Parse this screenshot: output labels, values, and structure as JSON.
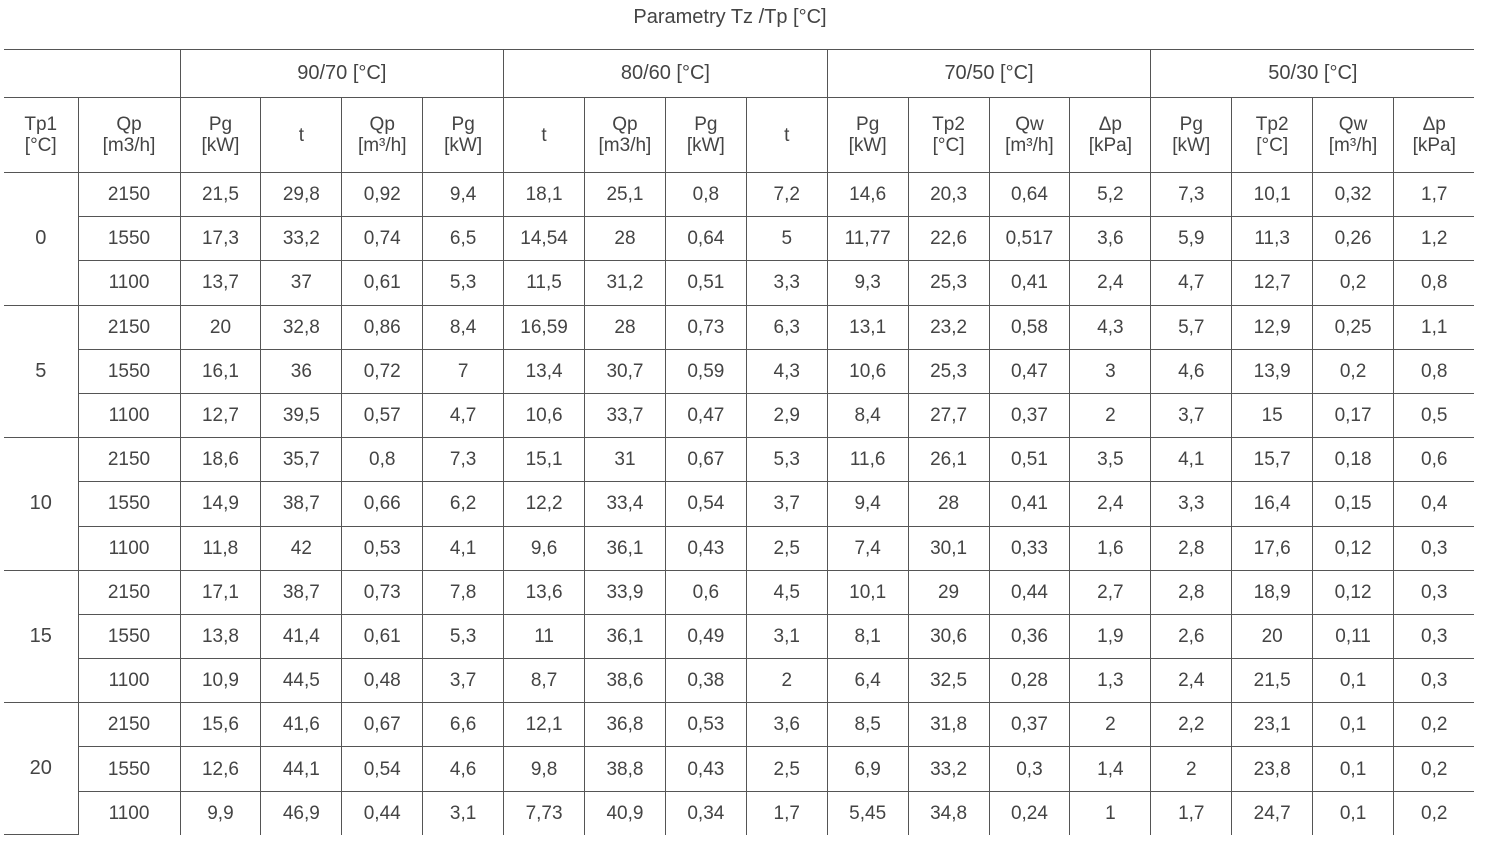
{
  "title": "Parametry Tz /Tp [°C]",
  "table": {
    "groups": [
      "90/70 [°C]",
      "80/60 [°C]",
      "70/50 [°C]",
      "50/30 [°C]"
    ],
    "columns": [
      [
        "Tp1",
        "[°C]"
      ],
      [
        "Qp",
        "[m3/h]"
      ],
      [
        "Pg",
        "[kW]"
      ],
      [
        "t"
      ],
      [
        "Qp",
        "[m³/h]"
      ],
      [
        "Pg",
        "[kW]"
      ],
      [
        "t"
      ],
      [
        "Qp",
        "[m3/h]"
      ],
      [
        "Pg",
        "[kW]"
      ],
      [
        "t"
      ],
      [
        "Pg",
        "[kW]"
      ],
      [
        "Tp2",
        "[°C]"
      ],
      [
        "Qw",
        "[m³/h]"
      ],
      [
        "Δp",
        "[kPa]"
      ],
      [
        "Pg",
        "[kW]"
      ],
      [
        "Tp2",
        "[°C]"
      ],
      [
        "Qw",
        "[m³/h]"
      ],
      [
        "Δp",
        "[kPa]"
      ]
    ],
    "blocks": [
      {
        "tp1": "0",
        "rows": [
          [
            "2150",
            "21,5",
            "29,8",
            "0,92",
            "9,4",
            "18,1",
            "25,1",
            "0,8",
            "7,2",
            "14,6",
            "20,3",
            "0,64",
            "5,2",
            "7,3",
            "10,1",
            "0,32",
            "1,7"
          ],
          [
            "1550",
            "17,3",
            "33,2",
            "0,74",
            "6,5",
            "14,54",
            "28",
            "0,64",
            "5",
            "11,77",
            "22,6",
            "0,517",
            "3,6",
            "5,9",
            "11,3",
            "0,26",
            "1,2"
          ],
          [
            "1100",
            "13,7",
            "37",
            "0,61",
            "5,3",
            "11,5",
            "31,2",
            "0,51",
            "3,3",
            "9,3",
            "25,3",
            "0,41",
            "2,4",
            "4,7",
            "12,7",
            "0,2",
            "0,8"
          ]
        ]
      },
      {
        "tp1": "5",
        "rows": [
          [
            "2150",
            "20",
            "32,8",
            "0,86",
            "8,4",
            "16,59",
            "28",
            "0,73",
            "6,3",
            "13,1",
            "23,2",
            "0,58",
            "4,3",
            "5,7",
            "12,9",
            "0,25",
            "1,1"
          ],
          [
            "1550",
            "16,1",
            "36",
            "0,72",
            "7",
            "13,4",
            "30,7",
            "0,59",
            "4,3",
            "10,6",
            "25,3",
            "0,47",
            "3",
            "4,6",
            "13,9",
            "0,2",
            "0,8"
          ],
          [
            "1100",
            "12,7",
            "39,5",
            "0,57",
            "4,7",
            "10,6",
            "33,7",
            "0,47",
            "2,9",
            "8,4",
            "27,7",
            "0,37",
            "2",
            "3,7",
            "15",
            "0,17",
            "0,5"
          ]
        ]
      },
      {
        "tp1": "10",
        "rows": [
          [
            "2150",
            "18,6",
            "35,7",
            "0,8",
            "7,3",
            "15,1",
            "31",
            "0,67",
            "5,3",
            "11,6",
            "26,1",
            "0,51",
            "3,5",
            "4,1",
            "15,7",
            "0,18",
            "0,6"
          ],
          [
            "1550",
            "14,9",
            "38,7",
            "0,66",
            "6,2",
            "12,2",
            "33,4",
            "0,54",
            "3,7",
            "9,4",
            "28",
            "0,41",
            "2,4",
            "3,3",
            "16,4",
            "0,15",
            "0,4"
          ],
          [
            "1100",
            "11,8",
            "42",
            "0,53",
            "4,1",
            "9,6",
            "36,1",
            "0,43",
            "2,5",
            "7,4",
            "30,1",
            "0,33",
            "1,6",
            "2,8",
            "17,6",
            "0,12",
            "0,3"
          ]
        ]
      },
      {
        "tp1": "15",
        "rows": [
          [
            "2150",
            "17,1",
            "38,7",
            "0,73",
            "7,8",
            "13,6",
            "33,9",
            "0,6",
            "4,5",
            "10,1",
            "29",
            "0,44",
            "2,7",
            "2,8",
            "18,9",
            "0,12",
            "0,3"
          ],
          [
            "1550",
            "13,8",
            "41,4",
            "0,61",
            "5,3",
            "11",
            "36,1",
            "0,49",
            "3,1",
            "8,1",
            "30,6",
            "0,36",
            "1,9",
            "2,6",
            "20",
            "0,11",
            "0,3"
          ],
          [
            "1100",
            "10,9",
            "44,5",
            "0,48",
            "3,7",
            "8,7",
            "38,6",
            "0,38",
            "2",
            "6,4",
            "32,5",
            "0,28",
            "1,3",
            "2,4",
            "21,5",
            "0,1",
            "0,3"
          ]
        ]
      },
      {
        "tp1": "20",
        "rows": [
          [
            "2150",
            "15,6",
            "41,6",
            "0,67",
            "6,6",
            "12,1",
            "36,8",
            "0,53",
            "3,6",
            "8,5",
            "31,8",
            "0,37",
            "2",
            "2,2",
            "23,1",
            "0,1",
            "0,2"
          ],
          [
            "1550",
            "12,6",
            "44,1",
            "0,54",
            "4,6",
            "9,8",
            "38,8",
            "0,43",
            "2,5",
            "6,9",
            "33,2",
            "0,3",
            "1,4",
            "2",
            "23,8",
            "0,1",
            "0,2"
          ],
          [
            "1100",
            "9,9",
            "46,9",
            "0,44",
            "3,1",
            "7,73",
            "40,9",
            "0,34",
            "1,7",
            "5,45",
            "34,8",
            "0,24",
            "1",
            "1,7",
            "24,7",
            "0,1",
            "0,2"
          ]
        ]
      }
    ]
  }
}
